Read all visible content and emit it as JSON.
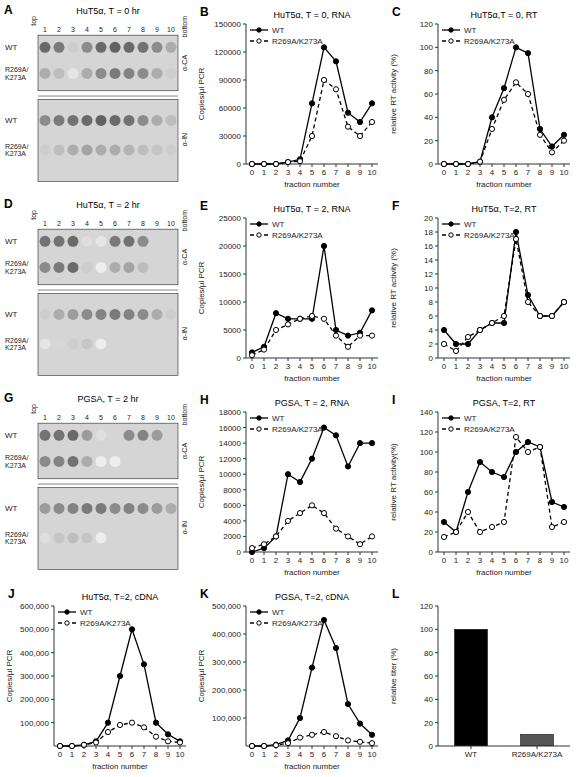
{
  "chart_data": [
    {
      "type": "blot",
      "title": "HuT5α, T = 0 hr",
      "annotations": [
        "A",
        "top",
        "bottom"
      ],
      "categories": [
        "1",
        "2",
        "3",
        "4",
        "5",
        "6",
        "7",
        "8",
        "9",
        "10"
      ],
      "groups": [
        {
          "name": "α-CA",
          "rows": [
            {
              "name": "WT",
              "values": [
                0.9,
                0.8,
                0.3,
                0.7,
                0.9,
                0.95,
                0.9,
                0.85,
                0.7,
                0.5
              ]
            },
            {
              "name": "R269A/\nK273A",
              "values": [
                0.5,
                0.4,
                0.15,
                0.5,
                0.7,
                0.8,
                0.75,
                0.7,
                0.5,
                0.3
              ]
            }
          ]
        },
        {
          "name": "α-IN",
          "rows": [
            {
              "name": "WT",
              "values": [
                0.7,
                0.8,
                0.85,
                0.9,
                0.95,
                0.9,
                0.85,
                0.7,
                0.5,
                0.4
              ]
            },
            {
              "name": "R269A/\nK273A",
              "values": [
                0.3,
                0.4,
                0.5,
                0.55,
                0.5,
                0.5,
                0.45,
                0.4,
                0.35,
                0.3
              ]
            }
          ]
        }
      ]
    },
    {
      "type": "line",
      "title": "HuT5α, T = 0, RNA",
      "annotations": [
        "B"
      ],
      "x_label": "fraction number",
      "y_label": "Copies/µl PCR",
      "x": [
        0,
        1,
        2,
        3,
        4,
        5,
        6,
        7,
        8,
        9,
        10
      ],
      "xlim": [
        -0.5,
        10.5
      ],
      "xticks": [
        0,
        1,
        2,
        3,
        4,
        5,
        6,
        7,
        8,
        9,
        10
      ],
      "ylim": [
        0,
        150000
      ],
      "yticks": [
        0,
        30000,
        60000,
        90000,
        120000,
        150000
      ],
      "legend": "upper left",
      "series": [
        {
          "name": "WT",
          "color": "#000000",
          "marker": "circle",
          "line_style": "solid",
          "values": [
            0,
            0,
            0,
            2000,
            5000,
            65000,
            125000,
            110000,
            55000,
            45000,
            65000
          ]
        },
        {
          "name": "R269A/K273A",
          "color": "#000000",
          "marker": "open-circle",
          "line_style": "dashed",
          "values": [
            0,
            0,
            0,
            2000,
            3000,
            30000,
            90000,
            80000,
            40000,
            30000,
            45000
          ]
        }
      ]
    },
    {
      "type": "line",
      "title": "HuT5α,T = 0, RT",
      "annotations": [
        "C"
      ],
      "x_label": "fraction number",
      "y_label": "relative RT activity (%)",
      "x": [
        0,
        1,
        2,
        3,
        4,
        5,
        6,
        7,
        8,
        9,
        10
      ],
      "xlim": [
        -0.5,
        10.5
      ],
      "xticks": [
        0,
        1,
        2,
        3,
        4,
        5,
        6,
        7,
        8,
        9,
        10
      ],
      "ylim": [
        0,
        120
      ],
      "yticks": [
        0,
        20,
        40,
        60,
        80,
        100,
        120
      ],
      "legend": "upper left",
      "series": [
        {
          "name": "WT",
          "color": "#000000",
          "marker": "circle",
          "line_style": "solid",
          "values": [
            0,
            0,
            0,
            2,
            40,
            65,
            100,
            95,
            30,
            15,
            25
          ]
        },
        {
          "name": "R269A/K273A",
          "color": "#000000",
          "marker": "open-circle",
          "line_style": "dashed",
          "values": [
            0,
            0,
            0,
            2,
            30,
            55,
            70,
            60,
            25,
            10,
            20
          ]
        }
      ]
    },
    {
      "type": "blot",
      "title": "HuT5α, T = 2 hr",
      "annotations": [
        "D",
        "top",
        "bottom"
      ],
      "categories": [
        "1",
        "2",
        "3",
        "4",
        "5",
        "6",
        "7",
        "8",
        "9",
        "10"
      ],
      "groups": [
        {
          "name": "α-CA",
          "rows": [
            {
              "name": "WT",
              "values": [
                0.85,
                0.85,
                0.9,
                0.2,
                0.15,
                0.8,
                0.85,
                0.7,
                0.0,
                0.0
              ]
            },
            {
              "name": "R269A/\nK273A",
              "values": [
                0.7,
                0.8,
                0.9,
                0.3,
                0.1,
                0.5,
                0.55,
                0.4,
                0.0,
                0.0
              ]
            }
          ]
        },
        {
          "name": "α-IN",
          "rows": [
            {
              "name": "WT",
              "values": [
                0.3,
                0.5,
                0.6,
                0.7,
                0.75,
                0.8,
                0.75,
                0.7,
                0.5,
                0.3
              ]
            },
            {
              "name": "R269A/\nK273A",
              "values": [
                0.15,
                0.25,
                0.3,
                0.35,
                0.1,
                0.0,
                0.0,
                0.0,
                0.0,
                0.0
              ]
            }
          ]
        }
      ]
    },
    {
      "type": "line",
      "title": "HuT5α, T = 2, RNA",
      "annotations": [
        "E"
      ],
      "x_label": "fraction number",
      "y_label": "Copies/µl PCR",
      "x": [
        0,
        1,
        2,
        3,
        4,
        5,
        6,
        7,
        8,
        9,
        10
      ],
      "xlim": [
        -0.5,
        10.5
      ],
      "xticks": [
        0,
        1,
        2,
        3,
        4,
        5,
        6,
        7,
        8,
        9,
        10
      ],
      "ylim": [
        0,
        25000
      ],
      "yticks": [
        0,
        5000,
        10000,
        15000,
        20000,
        25000
      ],
      "legend": "upper left",
      "series": [
        {
          "name": "WT",
          "color": "#000000",
          "marker": "circle",
          "line_style": "solid",
          "values": [
            1000,
            2000,
            8000,
            7000,
            7000,
            7000,
            20000,
            5000,
            4000,
            4500,
            8500
          ]
        },
        {
          "name": "R269A/K273A",
          "color": "#000000",
          "marker": "open-circle",
          "line_style": "dashed",
          "values": [
            500,
            1500,
            5000,
            6000,
            7000,
            7500,
            7000,
            4000,
            2000,
            4000,
            4000
          ]
        }
      ]
    },
    {
      "type": "line",
      "title": "HuT5α, T=2, RT",
      "annotations": [
        "F"
      ],
      "x_label": "fraction number",
      "y_label": "relative RT activity (%)",
      "x": [
        0,
        1,
        2,
        3,
        4,
        5,
        6,
        7,
        8,
        9,
        10
      ],
      "xlim": [
        -0.5,
        10.5
      ],
      "xticks": [
        0,
        1,
        2,
        3,
        4,
        5,
        6,
        7,
        8,
        9,
        10
      ],
      "ylim": [
        0,
        20
      ],
      "yticks": [
        0,
        2,
        4,
        6,
        8,
        10,
        12,
        14,
        16,
        18,
        20
      ],
      "legend": "upper left",
      "series": [
        {
          "name": "WT",
          "color": "#000000",
          "marker": "circle",
          "line_style": "solid",
          "values": [
            4,
            2,
            2,
            4,
            5,
            5,
            18,
            9,
            6,
            6,
            8
          ]
        },
        {
          "name": "R269A/K273A",
          "color": "#000000",
          "marker": "open-circle",
          "line_style": "dashed",
          "values": [
            2,
            1,
            3,
            4,
            5,
            6,
            17,
            8,
            6,
            6,
            8
          ]
        }
      ]
    },
    {
      "type": "blot",
      "title": "PGSA, T = 2 hr",
      "annotations": [
        "G",
        "top",
        "bottom"
      ],
      "categories": [
        "1",
        "2",
        "3",
        "4",
        "5",
        "6",
        "7",
        "8",
        "9",
        "10"
      ],
      "groups": [
        {
          "name": "α-CA",
          "rows": [
            {
              "name": "WT",
              "values": [
                0.85,
                0.85,
                0.9,
                0.6,
                0.2,
                0.0,
                0.7,
                0.75,
                0.6,
                0.0
              ]
            },
            {
              "name": "R269A/\nK273A",
              "values": [
                0.7,
                0.75,
                0.85,
                0.5,
                0.1,
                0.1,
                0.0,
                0.0,
                0.0,
                0.0
              ]
            }
          ]
        },
        {
          "name": "α-IN",
          "rows": [
            {
              "name": "WT",
              "values": [
                0.6,
                0.7,
                0.75,
                0.8,
                0.8,
                0.7,
                0.75,
                0.7,
                0.6,
                0.5
              ]
            },
            {
              "name": "R269A/\nK273A",
              "values": [
                0.2,
                0.35,
                0.4,
                0.35,
                0.1,
                0.0,
                0.0,
                0.0,
                0.0,
                0.0
              ]
            }
          ]
        }
      ]
    },
    {
      "type": "line",
      "title": "PGSA, T = 2, RNA",
      "annotations": [
        "H"
      ],
      "x_label": "fraction number",
      "y_label": "Copies/µl PCR",
      "x": [
        0,
        1,
        2,
        3,
        4,
        5,
        6,
        7,
        8,
        9,
        10
      ],
      "xlim": [
        -0.5,
        10.5
      ],
      "xticks": [
        0,
        1,
        2,
        3,
        4,
        5,
        6,
        7,
        8,
        9,
        10
      ],
      "ylim": [
        0,
        18000
      ],
      "yticks": [
        0,
        2000,
        4000,
        6000,
        8000,
        10000,
        12000,
        14000,
        16000,
        18000
      ],
      "legend": "upper left",
      "series": [
        {
          "name": "WT",
          "color": "#000000",
          "marker": "circle",
          "line_style": "solid",
          "values": [
            0,
            500,
            2000,
            10000,
            9000,
            12000,
            16000,
            15000,
            11000,
            14000,
            14000
          ]
        },
        {
          "name": "R269A/K273A",
          "color": "#000000",
          "marker": "open-circle",
          "line_style": "dashed",
          "values": [
            500,
            1000,
            2000,
            4000,
            5000,
            6000,
            5000,
            3000,
            2000,
            1000,
            2000
          ]
        }
      ]
    },
    {
      "type": "line",
      "title": "PGSA, T=2, RT",
      "annotations": [
        "I"
      ],
      "x_label": "fraction number",
      "y_label": "relative RT activity(%)",
      "x": [
        0,
        1,
        2,
        3,
        4,
        5,
        6,
        7,
        8,
        9,
        10
      ],
      "xlim": [
        -0.5,
        10.5
      ],
      "xticks": [
        0,
        1,
        2,
        3,
        4,
        5,
        6,
        7,
        8,
        9,
        10
      ],
      "ylim": [
        0,
        140
      ],
      "yticks": [
        0,
        20,
        40,
        60,
        80,
        100,
        120,
        140
      ],
      "legend": "upper left",
      "series": [
        {
          "name": "WT",
          "color": "#000000",
          "marker": "circle",
          "line_style": "solid",
          "values": [
            30,
            20,
            60,
            90,
            80,
            75,
            100,
            110,
            105,
            50,
            45
          ]
        },
        {
          "name": "R269A/K273A",
          "color": "#000000",
          "marker": "open-circle",
          "line_style": "dashed",
          "values": [
            15,
            20,
            40,
            20,
            25,
            30,
            115,
            100,
            105,
            25,
            30
          ]
        }
      ]
    },
    {
      "type": "line",
      "title": "HuT5α, T=2, cDNA",
      "annotations": [
        "J"
      ],
      "x_label": "fraction number",
      "y_label": "Copies/µl PCR",
      "x": [
        0,
        1,
        2,
        3,
        4,
        5,
        6,
        7,
        8,
        9,
        10
      ],
      "xlim": [
        -0.5,
        10.5
      ],
      "xticks": [
        0,
        1,
        2,
        3,
        4,
        5,
        6,
        7,
        8,
        9,
        10
      ],
      "ylim": [
        0,
        600000
      ],
      "yticks": [
        {
          "value": 100000,
          "label": "100,000"
        },
        {
          "value": 200000,
          "label": "200,000"
        },
        {
          "value": 300000,
          "label": "300,000"
        },
        {
          "value": 400000,
          "label": "400,000"
        },
        {
          "value": 500000,
          "label": "500,000"
        },
        {
          "value": 600000,
          "label": "600,000"
        }
      ],
      "legend": "upper left",
      "series": [
        {
          "name": "WT",
          "color": "#000000",
          "marker": "circle",
          "line_style": "solid",
          "values": [
            0,
            0,
            5000,
            20000,
            100000,
            300000,
            500000,
            350000,
            100000,
            50000,
            20000
          ]
        },
        {
          "name": "R269A/K273A",
          "color": "#000000",
          "marker": "open-circle",
          "line_style": "dashed",
          "values": [
            0,
            0,
            5000,
            15000,
            60000,
            90000,
            100000,
            80000,
            40000,
            20000,
            15000
          ]
        }
      ]
    },
    {
      "type": "line",
      "title": "PGSA, T=2, cDNA",
      "annotations": [
        "K"
      ],
      "x_label": "fraction number",
      "y_label": "Copies/µl PCR",
      "x": [
        0,
        1,
        2,
        3,
        4,
        5,
        6,
        7,
        8,
        9,
        10
      ],
      "xlim": [
        -0.5,
        10.5
      ],
      "xticks": [
        0,
        1,
        2,
        3,
        4,
        5,
        6,
        7,
        8,
        9,
        10
      ],
      "ylim": [
        0,
        500000
      ],
      "yticks": [
        {
          "value": 100000,
          "label": "100,000"
        },
        {
          "value": 200000,
          "label": "200,000"
        },
        {
          "value": 300000,
          "label": "300,000"
        },
        {
          "value": 400000,
          "label": "400,000"
        },
        {
          "value": 500000,
          "label": "500,000"
        }
      ],
      "legend": "upper left",
      "series": [
        {
          "name": "WT",
          "color": "#000000",
          "marker": "circle",
          "line_style": "solid",
          "values": [
            0,
            0,
            5000,
            20000,
            100000,
            280000,
            450000,
            350000,
            150000,
            80000,
            40000
          ]
        },
        {
          "name": "R269A/K273A",
          "color": "#000000",
          "marker": "open-circle",
          "line_style": "dashed",
          "values": [
            0,
            0,
            3000,
            10000,
            30000,
            40000,
            50000,
            35000,
            20000,
            15000,
            10000
          ]
        }
      ]
    },
    {
      "type": "bar",
      "annotations": [
        "L"
      ],
      "y_label": "relative titer (%)",
      "categories": [
        "WT",
        "R269A/K273A"
      ],
      "values": [
        100,
        10
      ],
      "colors": [
        "#000000",
        "#555555"
      ],
      "ylim": [
        0,
        120
      ],
      "yticks": [
        0,
        20,
        40,
        60,
        80,
        100,
        120
      ]
    }
  ]
}
